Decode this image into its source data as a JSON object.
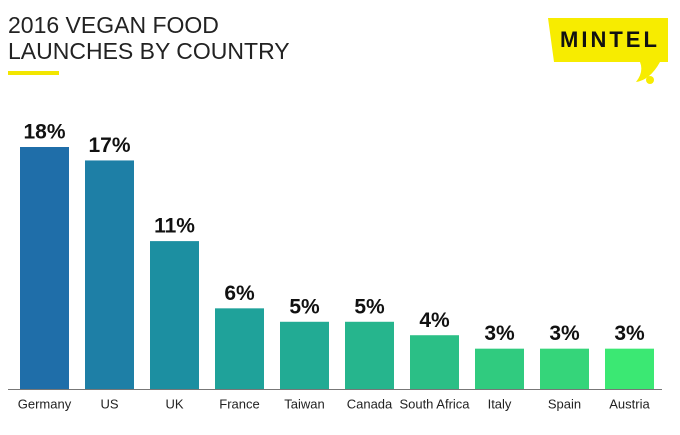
{
  "chart_data": {
    "type": "bar",
    "title": [
      "2016 VEGAN FOOD",
      "LAUNCHES BY COUNTRY"
    ],
    "logo": "MINTEL",
    "categories": [
      "Germany",
      "US",
      "UK",
      "France",
      "Taiwan",
      "Canada",
      "South Africa",
      "Italy",
      "Spain",
      "Austria"
    ],
    "values": [
      18,
      17,
      11,
      6,
      5,
      5,
      4,
      3,
      3,
      3
    ],
    "value_labels": [
      "18%",
      "17%",
      "11%",
      "6%",
      "5%",
      "5%",
      "4%",
      "3%",
      "3%",
      "3%"
    ],
    "colors": [
      "#1f6ea9",
      "#1e7fa6",
      "#1c8fa1",
      "#1fa29a",
      "#22ab94",
      "#26b58d",
      "#2bbf86",
      "#30cb7f",
      "#35d57a",
      "#3be873"
    ],
    "ylim": [
      0,
      18
    ]
  }
}
